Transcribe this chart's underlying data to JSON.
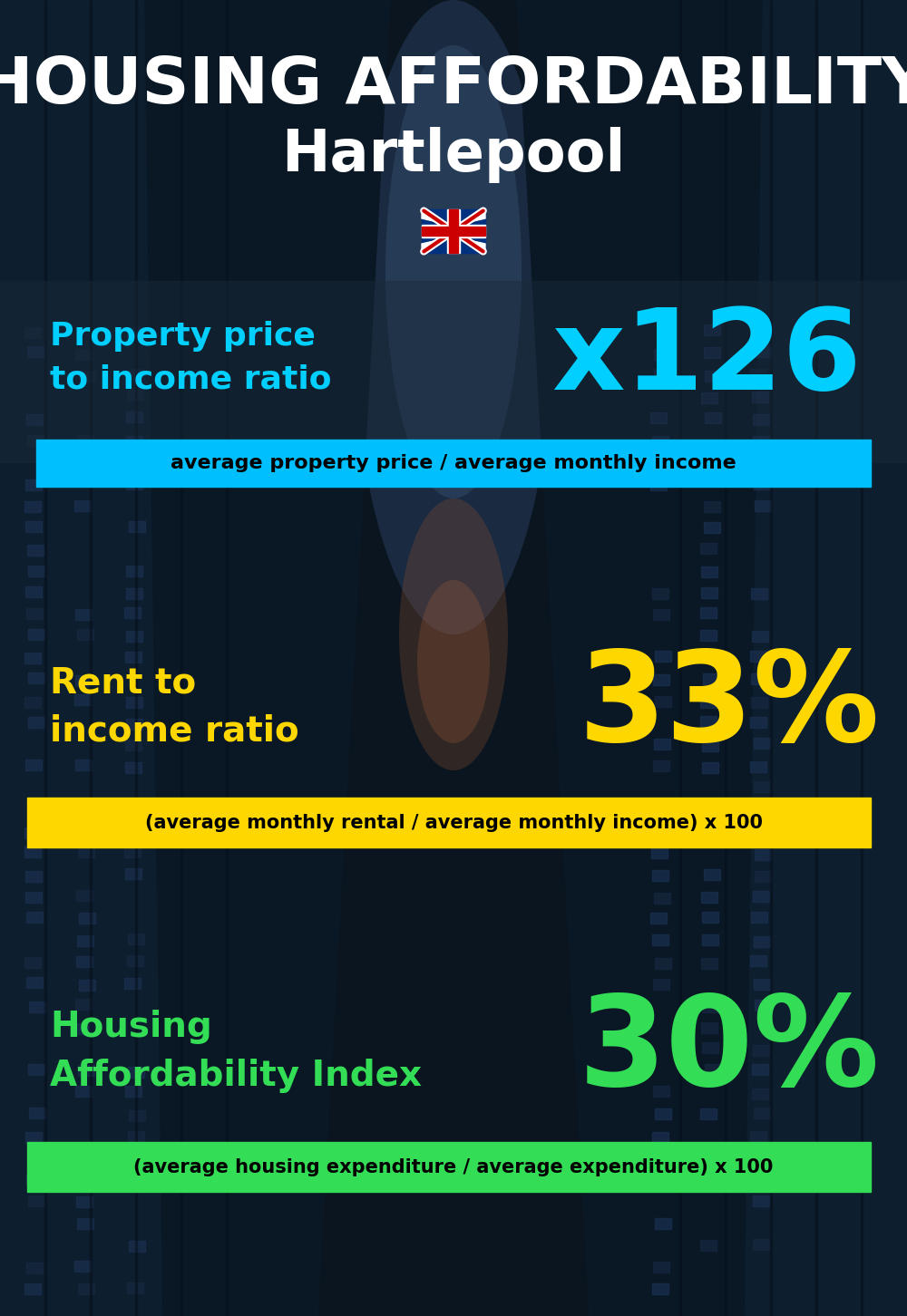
{
  "title_line1": "HOUSING AFFORDABILITY",
  "title_line2": "Hartlepool",
  "section1_label": "Property price\nto income ratio",
  "section1_value": "x126",
  "section1_label_color": "#00cfff",
  "section1_value_color": "#00cfff",
  "section1_banner_text": "average property price / average monthly income",
  "section1_banner_bg": "#00bfff",
  "section2_label": "Rent to\nincome ratio",
  "section2_value": "33%",
  "section2_label_color": "#FFD700",
  "section2_value_color": "#FFD700",
  "section2_banner_text": "(average monthly rental / average monthly income) x 100",
  "section2_banner_bg": "#FFD700",
  "section3_label": "Housing\nAffordability Index",
  "section3_value": "30%",
  "section3_label_color": "#33dd55",
  "section3_value_color": "#33dd55",
  "section3_banner_text": "(average housing expenditure / average expenditure) x 100",
  "section3_banner_bg": "#33dd55",
  "bg_color": "#0a1520",
  "title_color": "#ffffff",
  "banner_text_color": "#000000"
}
